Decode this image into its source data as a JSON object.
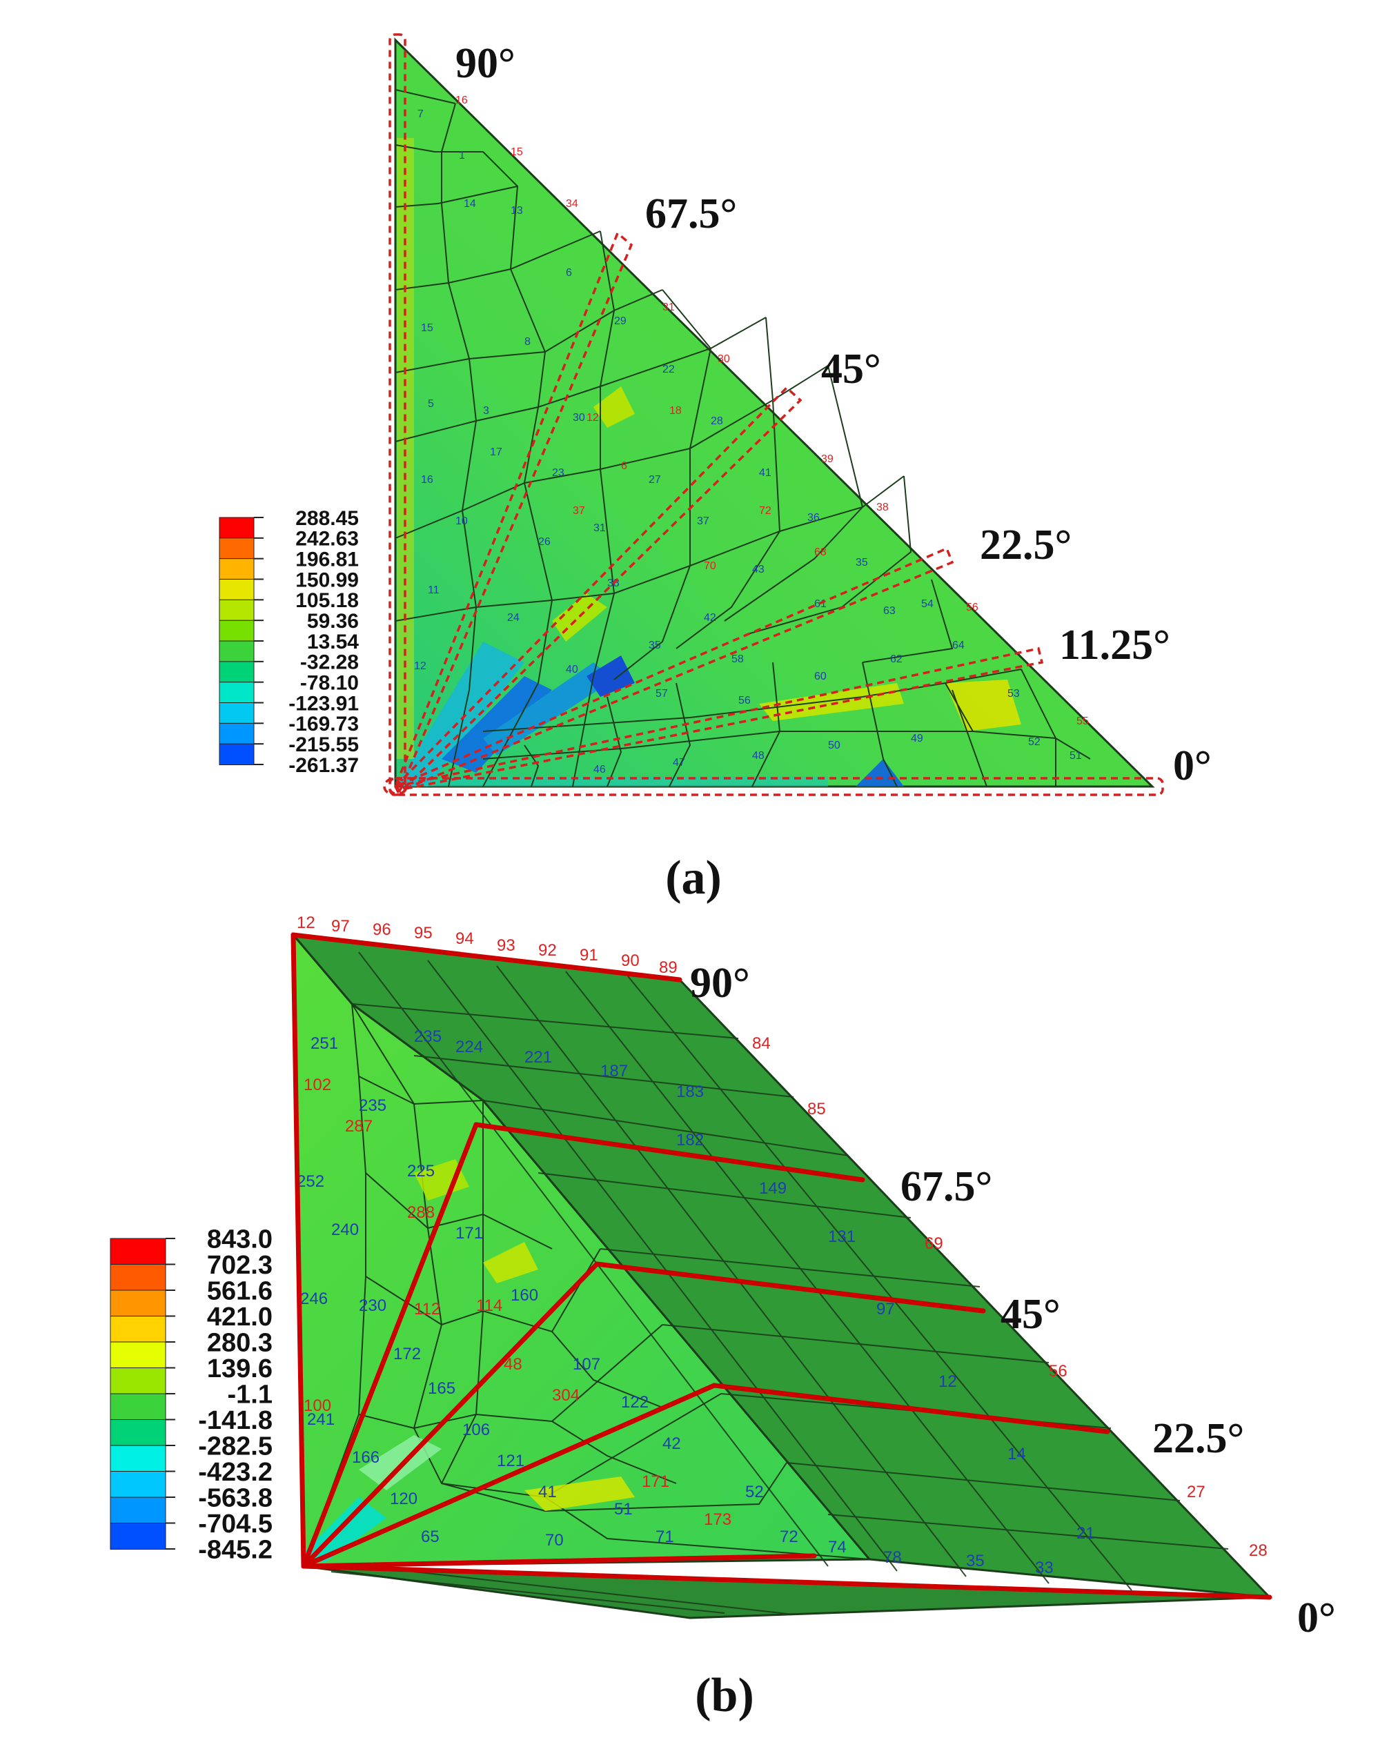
{
  "panel_a": {
    "label": "(a)",
    "legend": {
      "values": [
        "288.45",
        "242.63",
        "196.81",
        "150.99",
        "105.18",
        "59.36",
        "13.54",
        "-32.28",
        "-78.10",
        "-123.91",
        "-169.73",
        "-215.55",
        "-261.37"
      ],
      "colors": [
        "#ff0000",
        "#ff6a00",
        "#ffb400",
        "#e6e600",
        "#b4e600",
        "#78e000",
        "#3cd23c",
        "#00d278",
        "#00e6c8",
        "#00c8f0",
        "#0096ff",
        "#0050ff",
        "#0000e6"
      ]
    },
    "angles": [
      "90°",
      "67.5°",
      "45°",
      "22.5°",
      "11.25°",
      "0°"
    ]
  },
  "panel_b": {
    "label": "(b)",
    "legend": {
      "values": [
        "843.0",
        "702.3",
        "561.6",
        "421.0",
        "280.3",
        "139.6",
        "-1.1",
        "-141.8",
        "-282.5",
        "-423.2",
        "-563.8",
        "-704.5",
        "-845.2"
      ],
      "colors": [
        "#ff0000",
        "#ff5a00",
        "#ff9600",
        "#ffd200",
        "#e6ff00",
        "#9be600",
        "#3cd23c",
        "#00d278",
        "#00f0e6",
        "#00c8ff",
        "#0096ff",
        "#0050ff",
        "#0000e6"
      ]
    },
    "angles": [
      "90°",
      "67.5°",
      "45°",
      "22.5°",
      "0°"
    ]
  },
  "colors": {
    "mesh_fill": "#44d244",
    "mesh_dark": "#2e8b2e",
    "cut_lines_a": "#d62020",
    "cut_lines_b": "#cc0000"
  }
}
